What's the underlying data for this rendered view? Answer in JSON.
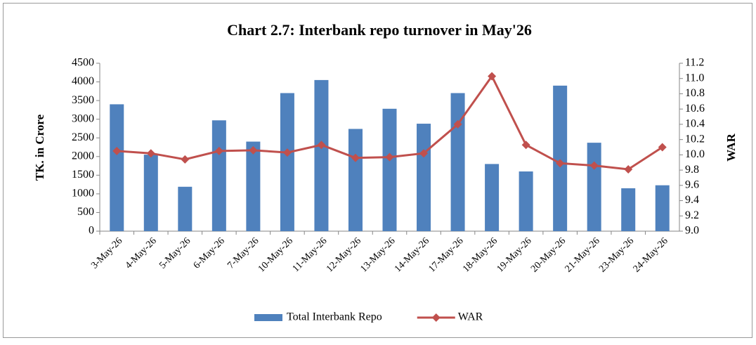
{
  "chart_data": {
    "type": "bar_line",
    "title": "Chart 2.7: Interbank repo turnover in May'26",
    "y_label": "TK. in Crore",
    "y2_label": "WAR",
    "categories": [
      "3-May-26",
      "4-May-26",
      "5-May-26",
      "6-May-26",
      "7-May-26",
      "10-May-26",
      "11-May-26",
      "12-May-26",
      "13-May-26",
      "14-May-26",
      "17-May-26",
      "18-May-26",
      "19-May-26",
      "20-May-26",
      "21-May-26",
      "23-May-26",
      "24-May-26"
    ],
    "series": [
      {
        "name": "Total Interbank Repo",
        "type": "bar",
        "color": "#4f81bd",
        "values": [
          3400,
          2050,
          1190,
          2970,
          2400,
          3700,
          4050,
          2740,
          3280,
          2880,
          3700,
          1800,
          1600,
          3900,
          2370,
          1150,
          1230
        ]
      },
      {
        "name": "WAR",
        "type": "line",
        "axis": "y2",
        "color": "#c0504d",
        "values": [
          10.05,
          10.02,
          9.94,
          10.05,
          10.06,
          10.03,
          10.13,
          9.96,
          9.97,
          10.02,
          10.4,
          11.03,
          10.13,
          9.89,
          9.86,
          9.81,
          10.1
        ]
      }
    ],
    "ylim": [
      0,
      4500
    ],
    "yticks": [
      0,
      500,
      1000,
      1500,
      2000,
      2500,
      3000,
      3500,
      4000,
      4500
    ],
    "y2lim": [
      9.0,
      11.2
    ],
    "y2ticks": [
      {
        "value": 9.0,
        "label": "9.0"
      },
      9.2,
      9.4,
      9.6,
      9.8,
      {
        "value": 10.0,
        "label": "10.0"
      },
      10.2,
      10.4,
      10.6,
      10.8,
      {
        "value": 11.0,
        "label": "11.0"
      },
      11.2
    ],
    "legend": "bottom"
  }
}
